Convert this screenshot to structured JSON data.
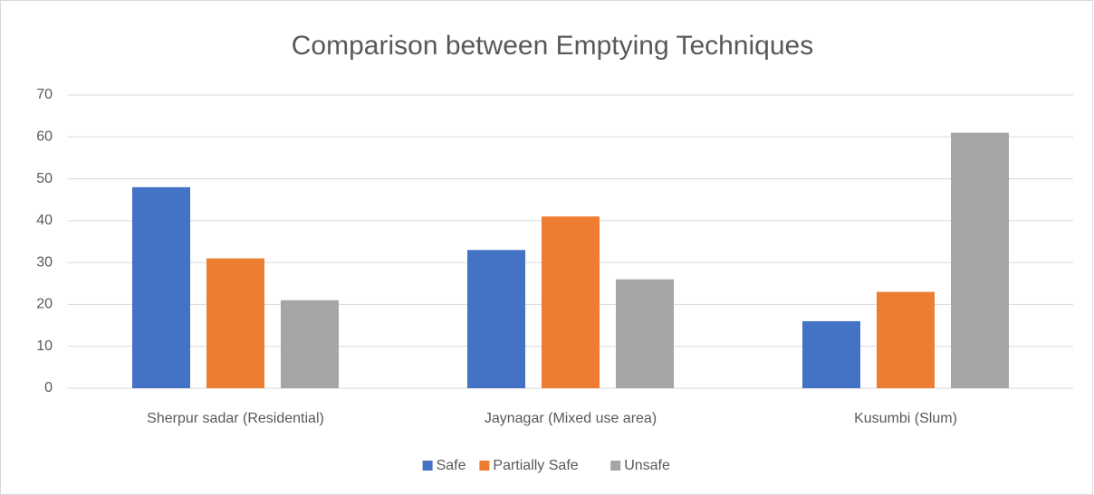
{
  "chart_data": {
    "type": "bar",
    "title": "Comparison between Emptying Techniques",
    "categories": [
      "Sherpur sadar (Residential)",
      "Jaynagar (Mixed use area)",
      "Kusumbi (Slum)"
    ],
    "series": [
      {
        "name": "Safe",
        "color": "#4472c4",
        "values": [
          48,
          33,
          16
        ]
      },
      {
        "name": "Partially Safe",
        "color": "#ed7d31",
        "values": [
          31,
          41,
          23
        ]
      },
      {
        "name": "Unsafe",
        "color": "#a5a5a5",
        "values": [
          21,
          26,
          61
        ]
      }
    ],
    "ylim": [
      0,
      70
    ],
    "yticks": [
      0,
      10,
      20,
      30,
      40,
      50,
      60,
      70
    ],
    "grid": true,
    "legend": "bottom"
  }
}
